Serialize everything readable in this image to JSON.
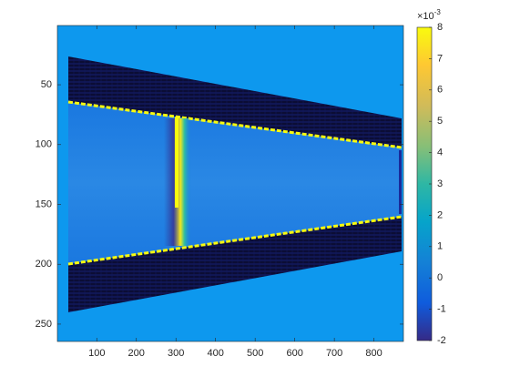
{
  "chart_data": {
    "type": "heatmap",
    "xlim": [
      0.5,
      874.5
    ],
    "xticks": [
      100,
      200,
      300,
      400,
      500,
      600,
      700,
      800
    ],
    "ylim": [
      0.5,
      264.5
    ],
    "yticks": [
      50,
      100,
      150,
      200,
      250
    ],
    "y_reversed": true,
    "clim": [
      -2,
      8
    ],
    "cticks": [
      -2,
      -1,
      0,
      1,
      2,
      3,
      4,
      5,
      6,
      7,
      8
    ],
    "colorbar_multiplier": {
      "base": "×10",
      "exponent": "-3"
    },
    "colormap": "parula"
  }
}
